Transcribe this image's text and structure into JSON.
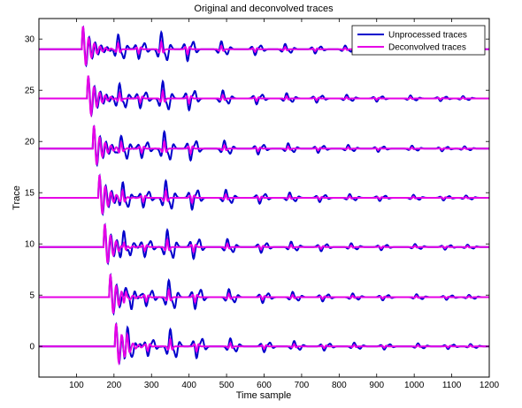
{
  "chart_data": {
    "type": "line",
    "title": "Original and deconvolved traces",
    "xlabel": "Time sample",
    "ylabel": "Trace",
    "xlim": [
      0,
      1200
    ],
    "ylim": [
      -3,
      32
    ],
    "xticks": [
      100,
      200,
      300,
      400,
      500,
      600,
      700,
      800,
      900,
      1000,
      1100,
      1200
    ],
    "yticks": [
      0,
      5,
      10,
      15,
      20,
      25,
      30
    ],
    "grid": false,
    "legend_position": "top-right",
    "trace_offsets": [
      0,
      4.8,
      9.7,
      14.5,
      19.3,
      24.2,
      29.0
    ],
    "first_arrival_samples": [
      202,
      187,
      172,
      158,
      143,
      128,
      114
    ],
    "reflection_samples": [
      235,
      290,
      350,
      420,
      510,
      600,
      680,
      760,
      840,
      920,
      1010,
      1090,
      1150
    ],
    "series": [
      {
        "name": "Unprocessed traces",
        "color": "#0000cc"
      },
      {
        "name": "Deconvolved traces",
        "color": "#e600e6"
      }
    ]
  }
}
